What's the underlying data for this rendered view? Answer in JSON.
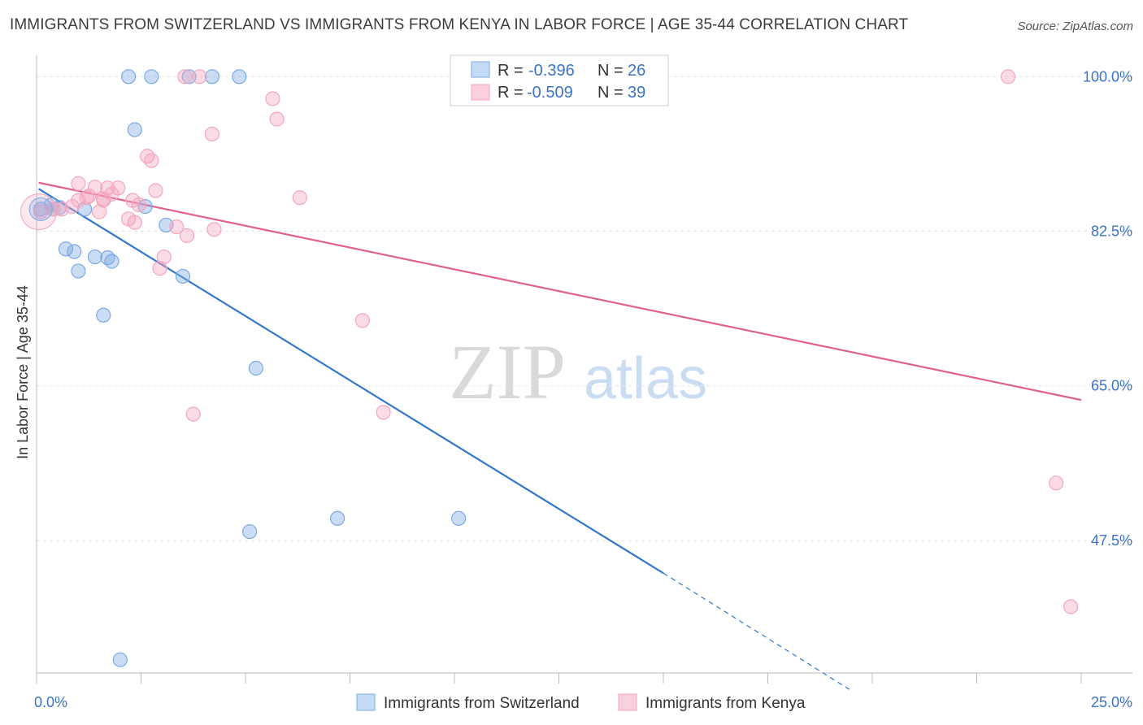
{
  "header": {
    "title": "IMMIGRANTS FROM SWITZERLAND VS IMMIGRANTS FROM KENYA IN LABOR FORCE | AGE 35-44 CORRELATION CHART",
    "source": "Source: ZipAtlas.com"
  },
  "watermark": {
    "zip": "ZIP",
    "atlas": "atlas"
  },
  "chart_data": {
    "type": "scatter",
    "title": "IMMIGRANTS FROM SWITZERLAND VS IMMIGRANTS FROM KENYA IN LABOR FORCE | AGE 35-44 CORRELATION CHART",
    "ylabel": "In Labor Force | Age 35-44",
    "xlabel": "",
    "xlim": [
      0,
      25
    ],
    "ylim": [
      32.5,
      101.5
    ],
    "x_tick_labels": [
      "0.0%",
      "25.0%"
    ],
    "y_ticks": [
      100,
      82.5,
      65,
      47.5
    ],
    "y_tick_labels": [
      "100.0%",
      "82.5%",
      "65.0%",
      "47.5%"
    ],
    "grid": true,
    "legend_placement": "top-center",
    "legend": [
      {
        "r_label": "R =",
        "r_value": "-0.396",
        "n_label": "N =",
        "n_value": "26"
      },
      {
        "r_label": "R =",
        "r_value": "-0.509",
        "n_label": "N =",
        "n_value": "39"
      }
    ],
    "series": [
      {
        "name": "Immigrants from Switzerland",
        "color": "#7aaae6",
        "line_color": "#3377cc",
        "trend": {
          "x": [
            0.05,
            15.0
          ],
          "y": [
            87.3,
            43.8
          ],
          "dashed_to": [
            19.5,
            30.5
          ]
        },
        "points": [
          [
            0.1,
            85.0
          ],
          [
            0.35,
            85.5
          ],
          [
            0.4,
            85.0
          ],
          [
            0.55,
            85.2
          ],
          [
            1.15,
            85.0
          ],
          [
            0.7,
            80.5
          ],
          [
            0.9,
            80.2
          ],
          [
            1.0,
            78.0
          ],
          [
            1.4,
            79.6
          ],
          [
            1.7,
            79.5
          ],
          [
            1.8,
            79.1
          ],
          [
            1.6,
            73.0
          ],
          [
            3.5,
            77.4
          ],
          [
            3.1,
            83.2
          ],
          [
            2.2,
            100.0
          ],
          [
            2.75,
            100.0
          ],
          [
            3.65,
            100.0
          ],
          [
            4.2,
            100.0
          ],
          [
            4.85,
            100.0
          ],
          [
            2.35,
            94.0
          ],
          [
            2.6,
            85.3
          ],
          [
            5.25,
            67.0
          ],
          [
            5.1,
            48.5
          ],
          [
            7.2,
            50.0
          ],
          [
            10.1,
            50.0
          ],
          [
            2.0,
            34.0
          ]
        ]
      },
      {
        "name": "Immigrants from Kenya",
        "color": "#f4a6be",
        "line_color": "#e0608e",
        "trend": {
          "x": [
            0.05,
            25.0
          ],
          "y": [
            88.0,
            63.4
          ]
        },
        "points": [
          [
            0.1,
            84.7
          ],
          [
            0.4,
            85.0
          ],
          [
            1.0,
            87.9
          ],
          [
            1.2,
            86.3
          ],
          [
            1.0,
            86.0
          ],
          [
            1.4,
            87.5
          ],
          [
            1.6,
            86.2
          ],
          [
            1.25,
            86.5
          ],
          [
            1.5,
            84.7
          ],
          [
            1.7,
            87.4
          ],
          [
            1.8,
            86.7
          ],
          [
            1.95,
            87.4
          ],
          [
            2.2,
            83.9
          ],
          [
            2.35,
            83.5
          ],
          [
            2.45,
            85.5
          ],
          [
            2.65,
            91.0
          ],
          [
            2.75,
            90.5
          ],
          [
            2.85,
            87.1
          ],
          [
            2.95,
            78.3
          ],
          [
            3.05,
            79.6
          ],
          [
            3.35,
            83.0
          ],
          [
            3.6,
            82.0
          ],
          [
            3.55,
            100.0
          ],
          [
            3.9,
            100.0
          ],
          [
            4.2,
            93.5
          ],
          [
            4.25,
            82.7
          ],
          [
            5.65,
            97.5
          ],
          [
            5.75,
            95.2
          ],
          [
            6.3,
            86.3
          ],
          [
            3.75,
            61.8
          ],
          [
            7.8,
            72.4
          ],
          [
            8.3,
            62.0
          ],
          [
            23.25,
            100.0
          ],
          [
            24.4,
            54.0
          ],
          [
            24.75,
            40.0
          ],
          [
            1.6,
            86.0
          ],
          [
            0.85,
            85.3
          ],
          [
            2.3,
            86.0
          ],
          [
            0.6,
            85.0
          ]
        ]
      }
    ]
  }
}
